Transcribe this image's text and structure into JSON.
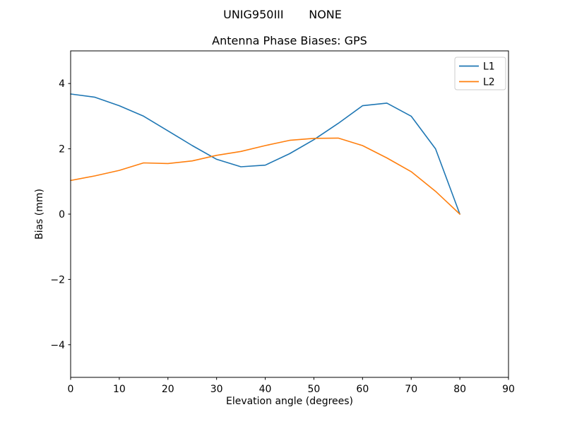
{
  "chart_data": {
    "type": "line",
    "suptitle": "UNIG950III       NONE",
    "title": "Antenna Phase Biases: GPS",
    "xlabel": "Elevation angle (degrees)",
    "ylabel": "Bias (mm)",
    "xlim": [
      0,
      90
    ],
    "ylim": [
      -5,
      5
    ],
    "xticks": [
      0,
      10,
      20,
      30,
      40,
      50,
      60,
      70,
      80,
      90
    ],
    "yticks": [
      -4,
      -2,
      0,
      2,
      4
    ],
    "grid": false,
    "legend_position": "upper right",
    "x": [
      0,
      5,
      10,
      15,
      20,
      25,
      30,
      35,
      40,
      45,
      50,
      55,
      60,
      65,
      70,
      75,
      80
    ],
    "series": [
      {
        "name": "L1",
        "color": "#1f77b4",
        "values": [
          3.68,
          3.58,
          3.32,
          3.0,
          2.55,
          2.1,
          1.68,
          1.45,
          1.5,
          1.85,
          2.28,
          2.78,
          3.32,
          3.4,
          3.0,
          2.0,
          0.0
        ]
      },
      {
        "name": "L2",
        "color": "#ff7f0e",
        "values": [
          1.03,
          1.17,
          1.34,
          1.57,
          1.55,
          1.63,
          1.8,
          1.92,
          2.1,
          2.26,
          2.32,
          2.33,
          2.1,
          1.72,
          1.3,
          0.7,
          0.0
        ]
      }
    ]
  }
}
